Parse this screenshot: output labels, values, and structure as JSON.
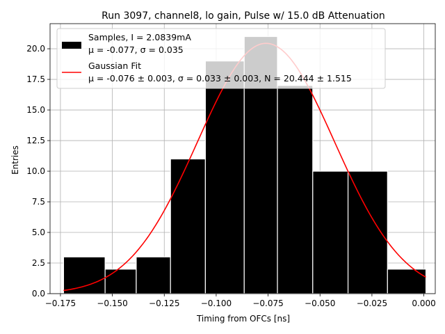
{
  "chart_data": {
    "type": "bar",
    "title": "Run 3097, channel8, lo gain, Pulse w/ 15.0 dB Attenuation",
    "xlabel": "Timing from OFCs [ns]",
    "ylabel": "Entries",
    "xlim": [
      -0.18,
      0.0055
    ],
    "ylim": [
      0,
      22.05
    ],
    "xticks": [
      -0.175,
      -0.15,
      -0.125,
      -0.1,
      -0.075,
      -0.05,
      -0.025,
      0.0
    ],
    "xtick_labels": [
      "−0.175",
      "−0.150",
      "−0.125",
      "−0.100",
      "−0.075",
      "−0.050",
      "−0.025",
      "0.000"
    ],
    "yticks": [
      0,
      2.5,
      5,
      7.5,
      10,
      12.5,
      15,
      17.5,
      20
    ],
    "ytick_labels": [
      "0.0",
      "2.5",
      "5.0",
      "7.5",
      "10.0",
      "12.5",
      "15.0",
      "17.5",
      "20.0"
    ],
    "grid": true,
    "legend_position": "top-left",
    "colors": {
      "bars": "#000000",
      "bar_edge": "#ffffff",
      "fit": "#ff0000",
      "grid": "#b0b0b0"
    },
    "bin_edges": [
      -0.1735,
      -0.1535,
      -0.1385,
      -0.122,
      -0.1052,
      -0.0865,
      -0.0705,
      -0.0535,
      -0.0365,
      -0.0175,
      0.001
    ],
    "values": [
      3,
      2,
      3,
      11,
      19,
      21,
      17,
      10,
      10,
      2
    ],
    "legend": {
      "samples_line1": "Samples, I = 2.0839mA",
      "samples_line2": "μ = -0.077, σ = 0.035",
      "fit_line1": "Gaussian Fit",
      "fit_line2": "μ = -0.076 ± 0.003, σ = 0.033 ± 0.003, N = 20.444 ± 1.515"
    },
    "fit": {
      "type": "gaussian",
      "mu": -0.076,
      "sigma": 0.033,
      "N": 20.444,
      "x_range": [
        -0.1735,
        0.001
      ]
    }
  }
}
